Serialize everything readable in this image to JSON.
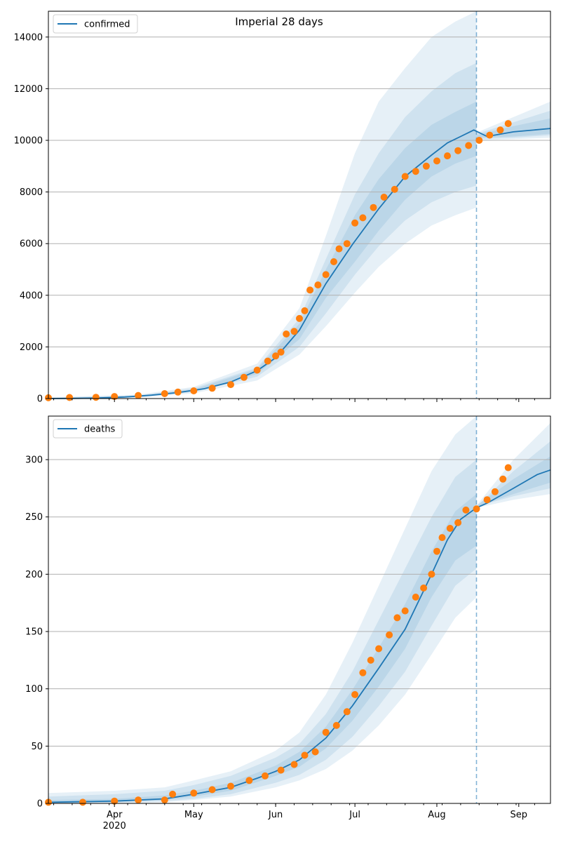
{
  "colors": {
    "model": "#1f77b4",
    "observed": "#ff7f0e",
    "band": "#1f77b4",
    "grid": "#b0b0b0",
    "axis": "#000000"
  },
  "chart_data": [
    {
      "type": "line",
      "title": "Imperial 28 days",
      "series": [
        {
          "name": "confirmed"
        }
      ],
      "ylim": [
        0,
        15000
      ],
      "yticks": [
        0,
        2000,
        4000,
        6000,
        8000,
        10000,
        12000,
        14000
      ],
      "grid": "horizontal",
      "legend": "top-left",
      "x_start": "2020-03-07",
      "x_end": "2020-09-13",
      "forecast_start": "2020-08-16",
      "model_median": {
        "x": [
          "2020-03-07",
          "2020-03-15",
          "2020-03-25",
          "2020-04-05",
          "2020-04-15",
          "2020-04-25",
          "2020-05-05",
          "2020-05-15",
          "2020-05-25",
          "2020-06-01",
          "2020-06-10",
          "2020-06-20",
          "2020-06-30",
          "2020-07-10",
          "2020-07-20",
          "2020-07-30",
          "2020-08-05",
          "2020-08-10",
          "2020-08-15",
          "2020-08-20",
          "2020-08-30",
          "2020-09-13"
        ],
        "y": [
          0,
          5,
          20,
          60,
          130,
          230,
          380,
          640,
          1080,
          1580,
          2650,
          4450,
          5960,
          7350,
          8600,
          9430,
          9900,
          10150,
          10400,
          10150,
          10330,
          10460
        ]
      },
      "bands": [
        {
          "label": "outer",
          "x": [
            "2020-03-07",
            "2020-04-10",
            "2020-05-01",
            "2020-05-25",
            "2020-06-10",
            "2020-06-20",
            "2020-07-01",
            "2020-07-10",
            "2020-07-20",
            "2020-07-30",
            "2020-08-08",
            "2020-08-16",
            "2020-08-16",
            "2020-08-30",
            "2020-09-13"
          ],
          "upper": [
            50,
            150,
            450,
            1350,
            3500,
            6300,
            9500,
            11500,
            12800,
            14000,
            14600,
            15000,
            10300,
            10900,
            11500
          ],
          "lower": [
            0,
            40,
            200,
            700,
            1700,
            2800,
            4100,
            5100,
            6000,
            6700,
            7100,
            7400,
            10000,
            10050,
            10100
          ]
        },
        {
          "label": "middle",
          "x": [
            "2020-03-07",
            "2020-04-10",
            "2020-05-01",
            "2020-05-25",
            "2020-06-10",
            "2020-06-20",
            "2020-07-01",
            "2020-07-10",
            "2020-07-20",
            "2020-07-30",
            "2020-08-08",
            "2020-08-16",
            "2020-08-16",
            "2020-08-30",
            "2020-09-13"
          ],
          "upper": [
            30,
            120,
            400,
            1200,
            3100,
            5400,
            7900,
            9500,
            10900,
            11900,
            12600,
            13000,
            10250,
            10700,
            11150
          ],
          "lower": [
            0,
            50,
            250,
            850,
            2000,
            3300,
            4800,
            5900,
            6900,
            7600,
            8000,
            8250,
            10050,
            10100,
            10200
          ]
        },
        {
          "label": "inner",
          "x": [
            "2020-03-07",
            "2020-04-10",
            "2020-05-01",
            "2020-05-25",
            "2020-06-10",
            "2020-06-20",
            "2020-07-01",
            "2020-07-10",
            "2020-07-20",
            "2020-07-30",
            "2020-08-08",
            "2020-08-16",
            "2020-08-16",
            "2020-08-30",
            "2020-09-13"
          ],
          "upper": [
            20,
            100,
            350,
            1150,
            2900,
            5000,
            7100,
            8500,
            9700,
            10600,
            11100,
            11500,
            10200,
            10550,
            10850
          ],
          "lower": [
            0,
            60,
            280,
            950,
            2300,
            3900,
            5300,
            6500,
            7700,
            8600,
            9100,
            9400,
            10100,
            10150,
            10250
          ]
        }
      ],
      "observed": {
        "x": [
          "2020-03-07",
          "2020-03-15",
          "2020-03-25",
          "2020-04-01",
          "2020-04-10",
          "2020-04-20",
          "2020-04-25",
          "2020-05-01",
          "2020-05-08",
          "2020-05-15",
          "2020-05-20",
          "2020-05-25",
          "2020-05-29",
          "2020-06-01",
          "2020-06-03",
          "2020-06-05",
          "2020-06-08",
          "2020-06-10",
          "2020-06-12",
          "2020-06-14",
          "2020-06-17",
          "2020-06-20",
          "2020-06-23",
          "2020-06-25",
          "2020-06-28",
          "2020-07-01",
          "2020-07-04",
          "2020-07-08",
          "2020-07-12",
          "2020-07-16",
          "2020-07-20",
          "2020-07-24",
          "2020-07-28",
          "2020-08-01",
          "2020-08-05",
          "2020-08-09",
          "2020-08-13",
          "2020-08-17",
          "2020-08-21",
          "2020-08-25",
          "2020-08-28"
        ],
        "y": [
          30,
          40,
          50,
          80,
          120,
          190,
          250,
          300,
          400,
          540,
          820,
          1100,
          1450,
          1650,
          1800,
          2500,
          2600,
          3100,
          3400,
          4200,
          4400,
          4800,
          5300,
          5800,
          6000,
          6800,
          7000,
          7400,
          7800,
          8100,
          8600,
          8800,
          9000,
          9200,
          9400,
          9600,
          9800,
          10000,
          10200,
          10400,
          10650
        ]
      }
    },
    {
      "type": "line",
      "title": "",
      "series": [
        {
          "name": "deaths"
        }
      ],
      "ylim": [
        0,
        338
      ],
      "yticks": [
        0,
        50,
        100,
        150,
        200,
        250,
        300
      ],
      "xtick_labels": [
        "Apr\n2020",
        "May",
        "Jun",
        "Jul",
        "Aug",
        "Sep"
      ],
      "grid": "horizontal",
      "legend": "top-left",
      "x_start": "2020-03-07",
      "x_end": "2020-09-13",
      "forecast_start": "2020-08-16",
      "model_median": {
        "x": [
          "2020-03-07",
          "2020-04-01",
          "2020-04-20",
          "2020-05-01",
          "2020-05-15",
          "2020-05-25",
          "2020-06-01",
          "2020-06-10",
          "2020-06-20",
          "2020-06-30",
          "2020-07-10",
          "2020-07-20",
          "2020-07-30",
          "2020-08-05",
          "2020-08-10",
          "2020-08-16",
          "2020-08-20",
          "2020-08-30",
          "2020-09-08",
          "2020-09-13"
        ],
        "y": [
          1,
          2,
          4,
          8,
          14,
          22,
          28,
          38,
          57,
          85,
          118,
          152,
          200,
          230,
          248,
          258,
          262,
          275,
          287,
          291
        ]
      },
      "bands": [
        {
          "label": "outer",
          "x": [
            "2020-03-07",
            "2020-04-01",
            "2020-04-20",
            "2020-05-01",
            "2020-05-15",
            "2020-06-01",
            "2020-06-10",
            "2020-06-20",
            "2020-06-30",
            "2020-07-10",
            "2020-07-20",
            "2020-07-30",
            "2020-08-08",
            "2020-08-16",
            "2020-08-16",
            "2020-08-30",
            "2020-09-13"
          ],
          "upper": [
            9,
            11,
            14,
            20,
            28,
            46,
            62,
            95,
            140,
            190,
            240,
            290,
            322,
            338,
            260,
            300,
            332
          ],
          "lower": [
            0,
            0,
            1,
            3,
            6,
            14,
            20,
            30,
            46,
            68,
            95,
            130,
            162,
            180,
            258,
            265,
            270
          ]
        },
        {
          "label": "middle",
          "x": [
            "2020-03-07",
            "2020-04-01",
            "2020-04-20",
            "2020-05-01",
            "2020-05-15",
            "2020-06-01",
            "2020-06-10",
            "2020-06-20",
            "2020-06-30",
            "2020-07-10",
            "2020-07-20",
            "2020-07-30",
            "2020-08-08",
            "2020-08-16",
            "2020-08-16",
            "2020-08-30",
            "2020-09-13"
          ],
          "upper": [
            6,
            8,
            11,
            16,
            24,
            40,
            52,
            78,
            115,
            160,
            205,
            250,
            285,
            300,
            259,
            290,
            316
          ],
          "lower": [
            0,
            1,
            2,
            4,
            8,
            18,
            25,
            38,
            58,
            85,
            115,
            155,
            190,
            205,
            259,
            268,
            275
          ]
        },
        {
          "label": "inner",
          "x": [
            "2020-03-07",
            "2020-04-01",
            "2020-04-20",
            "2020-05-01",
            "2020-05-15",
            "2020-06-01",
            "2020-06-10",
            "2020-06-20",
            "2020-06-30",
            "2020-07-10",
            "2020-07-20",
            "2020-07-30",
            "2020-08-08",
            "2020-08-16",
            "2020-08-16",
            "2020-08-30",
            "2020-09-13"
          ],
          "upper": [
            3,
            4,
            7,
            11,
            18,
            33,
            45,
            67,
            99,
            136,
            174,
            220,
            255,
            270,
            260,
            283,
            303
          ],
          "lower": [
            0,
            1,
            3,
            6,
            11,
            24,
            32,
            48,
            72,
            102,
            135,
            180,
            212,
            225,
            259,
            270,
            280
          ]
        }
      ],
      "observed": {
        "x": [
          "2020-03-07",
          "2020-03-20",
          "2020-04-01",
          "2020-04-10",
          "2020-04-20",
          "2020-04-23",
          "2020-05-01",
          "2020-05-08",
          "2020-05-15",
          "2020-05-22",
          "2020-05-28",
          "2020-06-03",
          "2020-06-08",
          "2020-06-12",
          "2020-06-16",
          "2020-06-20",
          "2020-06-24",
          "2020-06-28",
          "2020-07-01",
          "2020-07-04",
          "2020-07-07",
          "2020-07-10",
          "2020-07-14",
          "2020-07-17",
          "2020-07-20",
          "2020-07-24",
          "2020-07-27",
          "2020-07-30",
          "2020-08-01",
          "2020-08-03",
          "2020-08-06",
          "2020-08-09",
          "2020-08-12",
          "2020-08-16",
          "2020-08-20",
          "2020-08-23",
          "2020-08-26",
          "2020-08-28"
        ],
        "y": [
          1,
          1,
          2,
          3,
          3,
          8,
          9,
          12,
          15,
          20,
          24,
          29,
          34,
          42,
          45,
          62,
          68,
          80,
          95,
          114,
          125,
          135,
          147,
          162,
          168,
          180,
          188,
          200,
          220,
          232,
          240,
          245,
          256,
          257,
          265,
          272,
          283,
          293
        ]
      }
    }
  ]
}
